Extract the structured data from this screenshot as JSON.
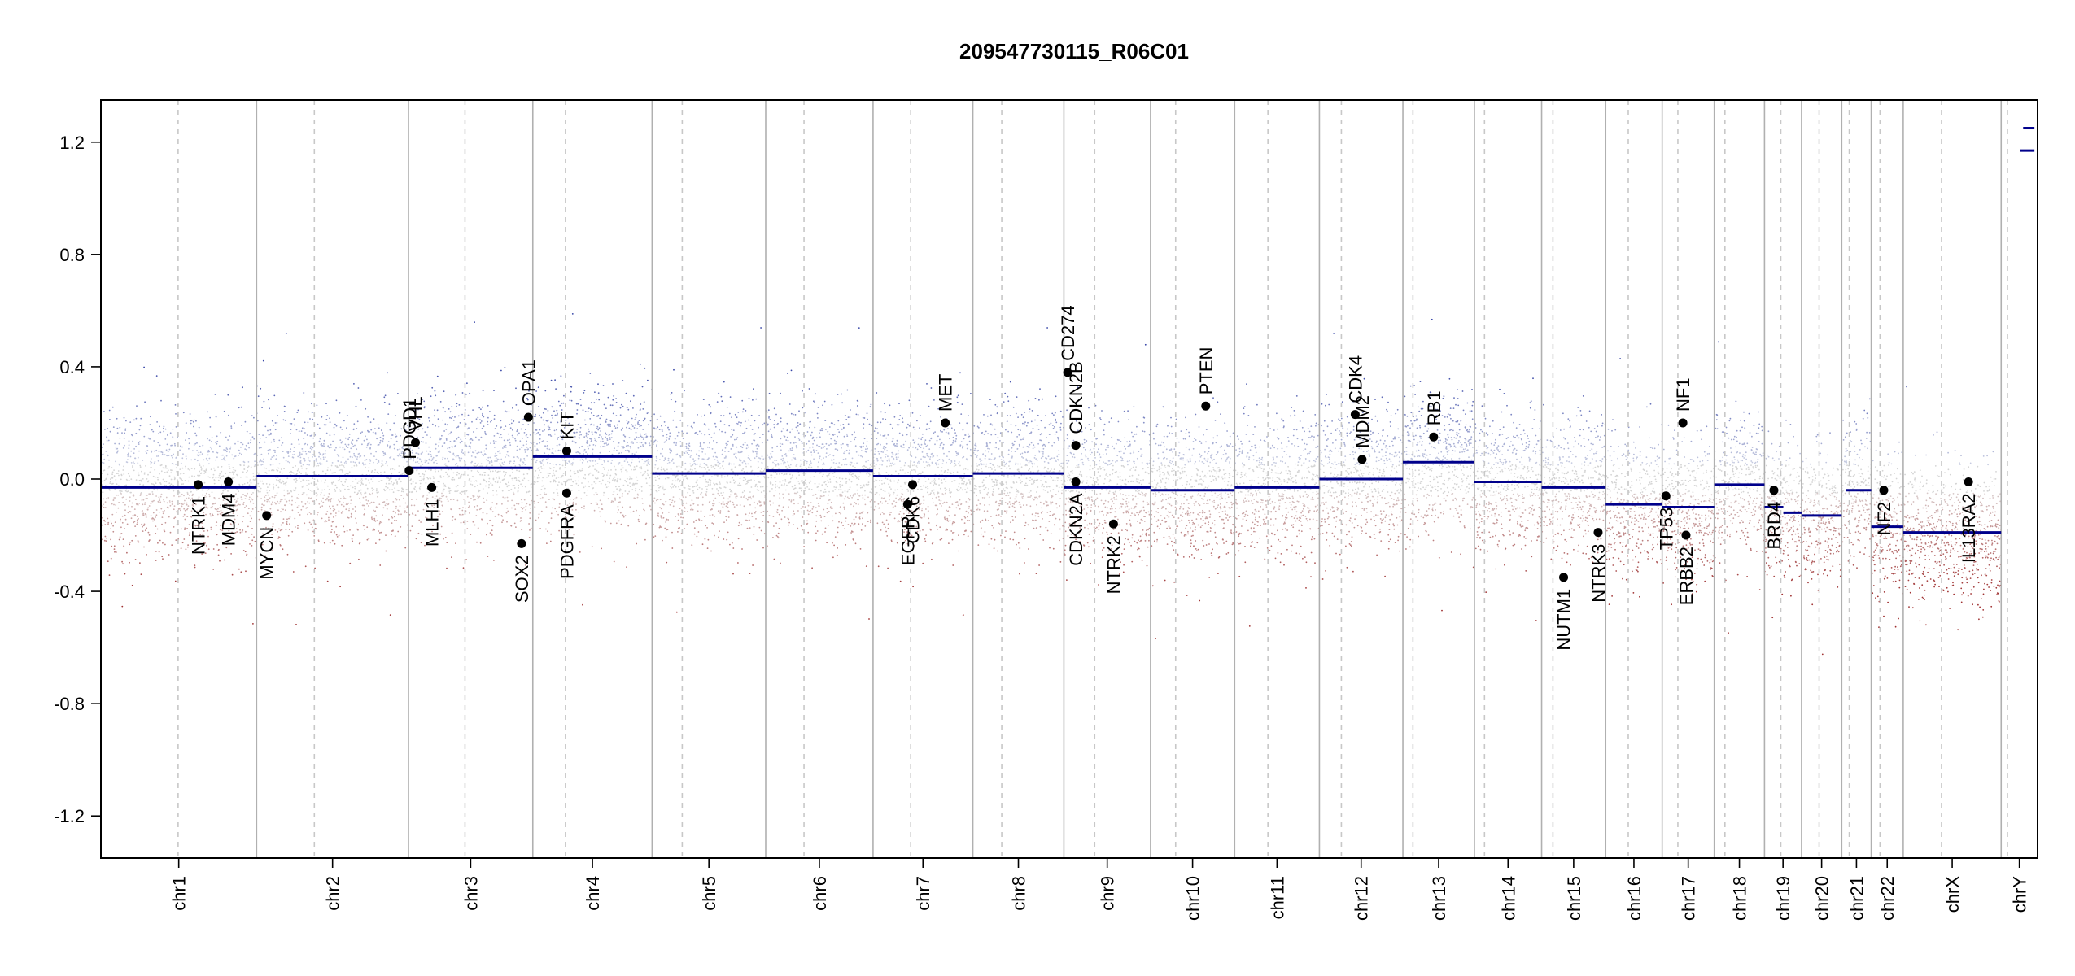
{
  "chart_data": {
    "type": "scatter",
    "title": "209547730115_R06C01",
    "xlabel": "",
    "ylabel": "",
    "ylim": [
      -1.35,
      1.35
    ],
    "y_ticks": [
      -1.2,
      -0.8,
      -0.4,
      0.0,
      0.4,
      0.8,
      1.2
    ],
    "y_tick_labels": [
      "-1.2",
      "-0.8",
      "-0.4",
      "0.0",
      "0.4",
      "0.8",
      "1.2"
    ],
    "grid": false,
    "colors": {
      "segment": "#00008b",
      "gain_points": "#3b4ca8",
      "loss_points": "#a83232",
      "neutral_points": "#c8c8c8",
      "chr_boundary": "#b0b0b0",
      "centromere": "#c8c8c8",
      "gene_dot": "#000000"
    },
    "chromosomes": [
      {
        "name": "chr1",
        "start": 0,
        "end": 248,
        "centromere": 123
      },
      {
        "name": "chr2",
        "start": 248,
        "end": 490,
        "centromere": 340
      },
      {
        "name": "chr3",
        "start": 490,
        "end": 688,
        "centromere": 580
      },
      {
        "name": "chr4",
        "start": 688,
        "end": 878,
        "centromere": 740
      },
      {
        "name": "chr5",
        "start": 878,
        "end": 1059,
        "centromere": 926
      },
      {
        "name": "chr6",
        "start": 1059,
        "end": 1230,
        "centromere": 1120
      },
      {
        "name": "chr7",
        "start": 1230,
        "end": 1389,
        "centromere": 1290
      },
      {
        "name": "chr8",
        "start": 1389,
        "end": 1534,
        "centromere": 1435
      },
      {
        "name": "chr9",
        "start": 1534,
        "end": 1672,
        "centromere": 1583
      },
      {
        "name": "chr10",
        "start": 1672,
        "end": 1806,
        "centromere": 1712
      },
      {
        "name": "chr11",
        "start": 1806,
        "end": 1941,
        "centromere": 1859
      },
      {
        "name": "chr12",
        "start": 1941,
        "end": 2074,
        "centromere": 1976
      },
      {
        "name": "chr13",
        "start": 2074,
        "end": 2188,
        "centromere": 2090
      },
      {
        "name": "chr14",
        "start": 2188,
        "end": 2295,
        "centromere": 2204
      },
      {
        "name": "chr15",
        "start": 2295,
        "end": 2397,
        "centromere": 2313
      },
      {
        "name": "chr16",
        "start": 2397,
        "end": 2487,
        "centromere": 2433
      },
      {
        "name": "chr17",
        "start": 2487,
        "end": 2570,
        "centromere": 2512
      },
      {
        "name": "chr18",
        "start": 2570,
        "end": 2650,
        "centromere": 2587
      },
      {
        "name": "chr19",
        "start": 2650,
        "end": 2709,
        "centromere": 2676
      },
      {
        "name": "chr20",
        "start": 2709,
        "end": 2773,
        "centromere": 2737
      },
      {
        "name": "chr21",
        "start": 2773,
        "end": 2820,
        "centromere": 2785
      },
      {
        "name": "chr22",
        "start": 2820,
        "end": 2871,
        "centromere": 2834
      },
      {
        "name": "chrX",
        "start": 2871,
        "end": 3027,
        "centromere": 2932
      },
      {
        "name": "chrY",
        "start": 3027,
        "end": 3085,
        "centromere": 3037
      }
    ],
    "segments": [
      {
        "chr": "chr1",
        "x0": 0,
        "x1": 248,
        "y": -0.03
      },
      {
        "chr": "chr2",
        "x0": 248,
        "x1": 490,
        "y": 0.01
      },
      {
        "chr": "chr3",
        "x0": 490,
        "x1": 688,
        "y": 0.04
      },
      {
        "chr": "chr4",
        "x0": 688,
        "x1": 878,
        "y": 0.08
      },
      {
        "chr": "chr5",
        "x0": 878,
        "x1": 1059,
        "y": 0.02
      },
      {
        "chr": "chr6",
        "x0": 1059,
        "x1": 1230,
        "y": 0.03
      },
      {
        "chr": "chr7",
        "x0": 1230,
        "x1": 1389,
        "y": 0.01
      },
      {
        "chr": "chr8",
        "x0": 1389,
        "x1": 1534,
        "y": 0.02
      },
      {
        "chr": "chr9",
        "x0": 1534,
        "x1": 1672,
        "y": -0.03
      },
      {
        "chr": "chr10",
        "x0": 1672,
        "x1": 1806,
        "y": -0.04
      },
      {
        "chr": "chr11",
        "x0": 1806,
        "x1": 1941,
        "y": -0.03
      },
      {
        "chr": "chr12",
        "x0": 1941,
        "x1": 2074,
        "y": 0.0
      },
      {
        "chr": "chr13",
        "x0": 2074,
        "x1": 2188,
        "y": 0.06
      },
      {
        "chr": "chr14",
        "x0": 2188,
        "x1": 2295,
        "y": -0.01
      },
      {
        "chr": "chr15",
        "x0": 2295,
        "x1": 2397,
        "y": -0.03
      },
      {
        "chr": "chr16",
        "x0": 2397,
        "x1": 2487,
        "y": -0.09
      },
      {
        "chr": "chr17",
        "x0": 2487,
        "x1": 2570,
        "y": -0.1
      },
      {
        "chr": "chr18",
        "x0": 2570,
        "x1": 2650,
        "y": -0.02
      },
      {
        "chr": "chr19",
        "x0": 2650,
        "x1": 2680,
        "y": -0.1
      },
      {
        "chr": "chr19",
        "x0": 2680,
        "x1": 2709,
        "y": -0.12
      },
      {
        "chr": "chr20",
        "x0": 2709,
        "x1": 2773,
        "y": -0.13
      },
      {
        "chr": "chr21",
        "x0": 2780,
        "x1": 2820,
        "y": -0.04
      },
      {
        "chr": "chr22",
        "x0": 2820,
        "x1": 2871,
        "y": -0.17
      },
      {
        "chr": "chrX",
        "x0": 2871,
        "x1": 3027,
        "y": -0.19
      },
      {
        "chr": "chrY",
        "x0": 3057,
        "x1": 3080,
        "y": 1.17
      },
      {
        "chr": "chrY",
        "x0": 3062,
        "x1": 3080,
        "y": 1.25
      }
    ],
    "genes": [
      {
        "name": "NTRK1",
        "chr": "chr1",
        "x": 155,
        "y": -0.02,
        "label_side": "below"
      },
      {
        "name": "MDM4",
        "chr": "chr1",
        "x": 203,
        "y": -0.01,
        "label_side": "below"
      },
      {
        "name": "MYCN",
        "chr": "chr2",
        "x": 264,
        "y": -0.13,
        "label_side": "below"
      },
      {
        "name": "PDGD1",
        "chr": "chr3",
        "x": 491,
        "y": 0.03,
        "label_side": "above"
      },
      {
        "name": "VHL",
        "chr": "chr3",
        "x": 501,
        "y": 0.13,
        "label_side": "above"
      },
      {
        "name": "MLH1",
        "chr": "chr3",
        "x": 527,
        "y": -0.03,
        "label_side": "below"
      },
      {
        "name": "SOX2",
        "chr": "chr3",
        "x": 670,
        "y": -0.23,
        "label_side": "below"
      },
      {
        "name": "OPA1",
        "chr": "chr3",
        "x": 681,
        "y": 0.22,
        "label_side": "above"
      },
      {
        "name": "KIT",
        "chr": "chr4",
        "x": 742,
        "y": 0.1,
        "label_side": "above"
      },
      {
        "name": "PDGFRA",
        "chr": "chr4",
        "x": 742,
        "y": -0.05,
        "label_side": "below"
      },
      {
        "name": "EGFR",
        "chr": "chr7",
        "x": 1285,
        "y": -0.09,
        "label_side": "below"
      },
      {
        "name": "CDK6",
        "chr": "chr7",
        "x": 1293,
        "y": -0.02,
        "label_side": "below"
      },
      {
        "name": "MET",
        "chr": "chr7",
        "x": 1345,
        "y": 0.2,
        "label_side": "above"
      },
      {
        "name": "CD274",
        "chr": "chr9",
        "x": 1540,
        "y": 0.38,
        "label_side": "above"
      },
      {
        "name": "CDKN2B",
        "chr": "chr9",
        "x": 1553,
        "y": 0.12,
        "label_side": "above"
      },
      {
        "name": "CDKN2A",
        "chr": "chr9",
        "x": 1553,
        "y": -0.01,
        "label_side": "below"
      },
      {
        "name": "NTRK2",
        "chr": "chr9",
        "x": 1613,
        "y": -0.16,
        "label_side": "below"
      },
      {
        "name": "PTEN",
        "chr": "chr10",
        "x": 1760,
        "y": 0.26,
        "label_side": "above"
      },
      {
        "name": "CDK4",
        "chr": "chr12",
        "x": 1998,
        "y": 0.23,
        "label_side": "above"
      },
      {
        "name": "MDM2",
        "chr": "chr12",
        "x": 2009,
        "y": 0.07,
        "label_side": "above"
      },
      {
        "name": "RB1",
        "chr": "chr13",
        "x": 2123,
        "y": 0.15,
        "label_side": "above"
      },
      {
        "name": "NUTM1",
        "chr": "chr15",
        "x": 2330,
        "y": -0.35,
        "label_side": "below"
      },
      {
        "name": "NTRK3",
        "chr": "chr15",
        "x": 2385,
        "y": -0.19,
        "label_side": "below"
      },
      {
        "name": "TP53",
        "chr": "chr17",
        "x": 2493,
        "y": -0.06,
        "label_side": "below"
      },
      {
        "name": "NF1",
        "chr": "chr17",
        "x": 2520,
        "y": 0.2,
        "label_side": "above"
      },
      {
        "name": "ERBB2",
        "chr": "chr17",
        "x": 2525,
        "y": -0.2,
        "label_side": "below"
      },
      {
        "name": "BRD4",
        "chr": "chr19",
        "x": 2665,
        "y": -0.04,
        "label_side": "below"
      },
      {
        "name": "NF2",
        "chr": "chr22",
        "x": 2840,
        "y": -0.04,
        "label_side": "below"
      },
      {
        "name": "IL13RA2",
        "chr": "chrX",
        "x": 2975,
        "y": -0.01,
        "label_side": "below"
      }
    ]
  }
}
